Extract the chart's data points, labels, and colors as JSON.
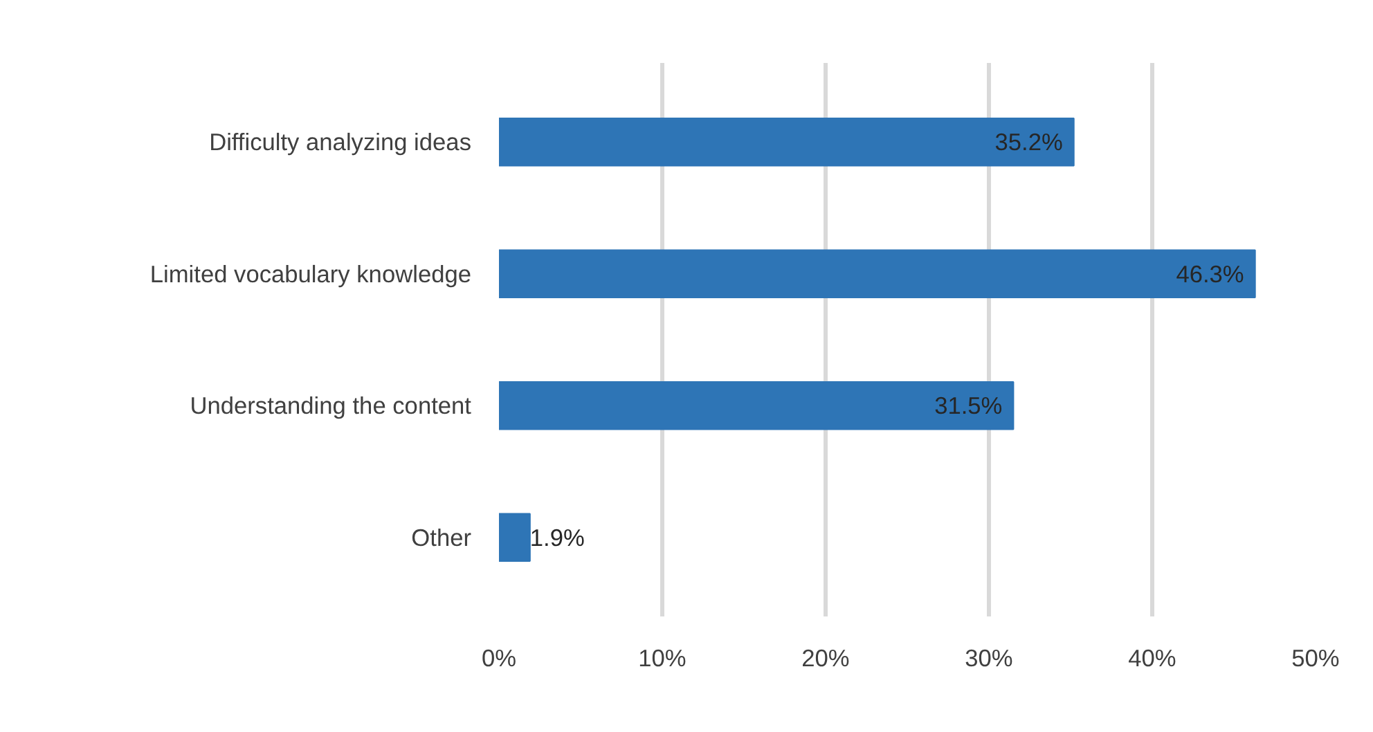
{
  "chart_data": {
    "type": "bar",
    "orientation": "horizontal",
    "categories": [
      "Difficulty analyzing ideas",
      "Limited vocabulary knowledge",
      "Understanding the content",
      "Other"
    ],
    "values": [
      35.2,
      46.3,
      31.5,
      1.9
    ],
    "value_labels": [
      "35.2%",
      "46.3%",
      "31.5%",
      "1.9%"
    ],
    "color": "#2e75b6",
    "xlim": [
      0,
      50
    ],
    "xticks": [
      {
        "value": 0,
        "label": "0%"
      },
      {
        "value": 10,
        "label": "10%"
      },
      {
        "value": 20,
        "label": "20%"
      },
      {
        "value": 30,
        "label": "30%"
      },
      {
        "value": 40,
        "label": "40%"
      },
      {
        "value": 50,
        "label": "50%"
      }
    ],
    "grid": "x"
  }
}
